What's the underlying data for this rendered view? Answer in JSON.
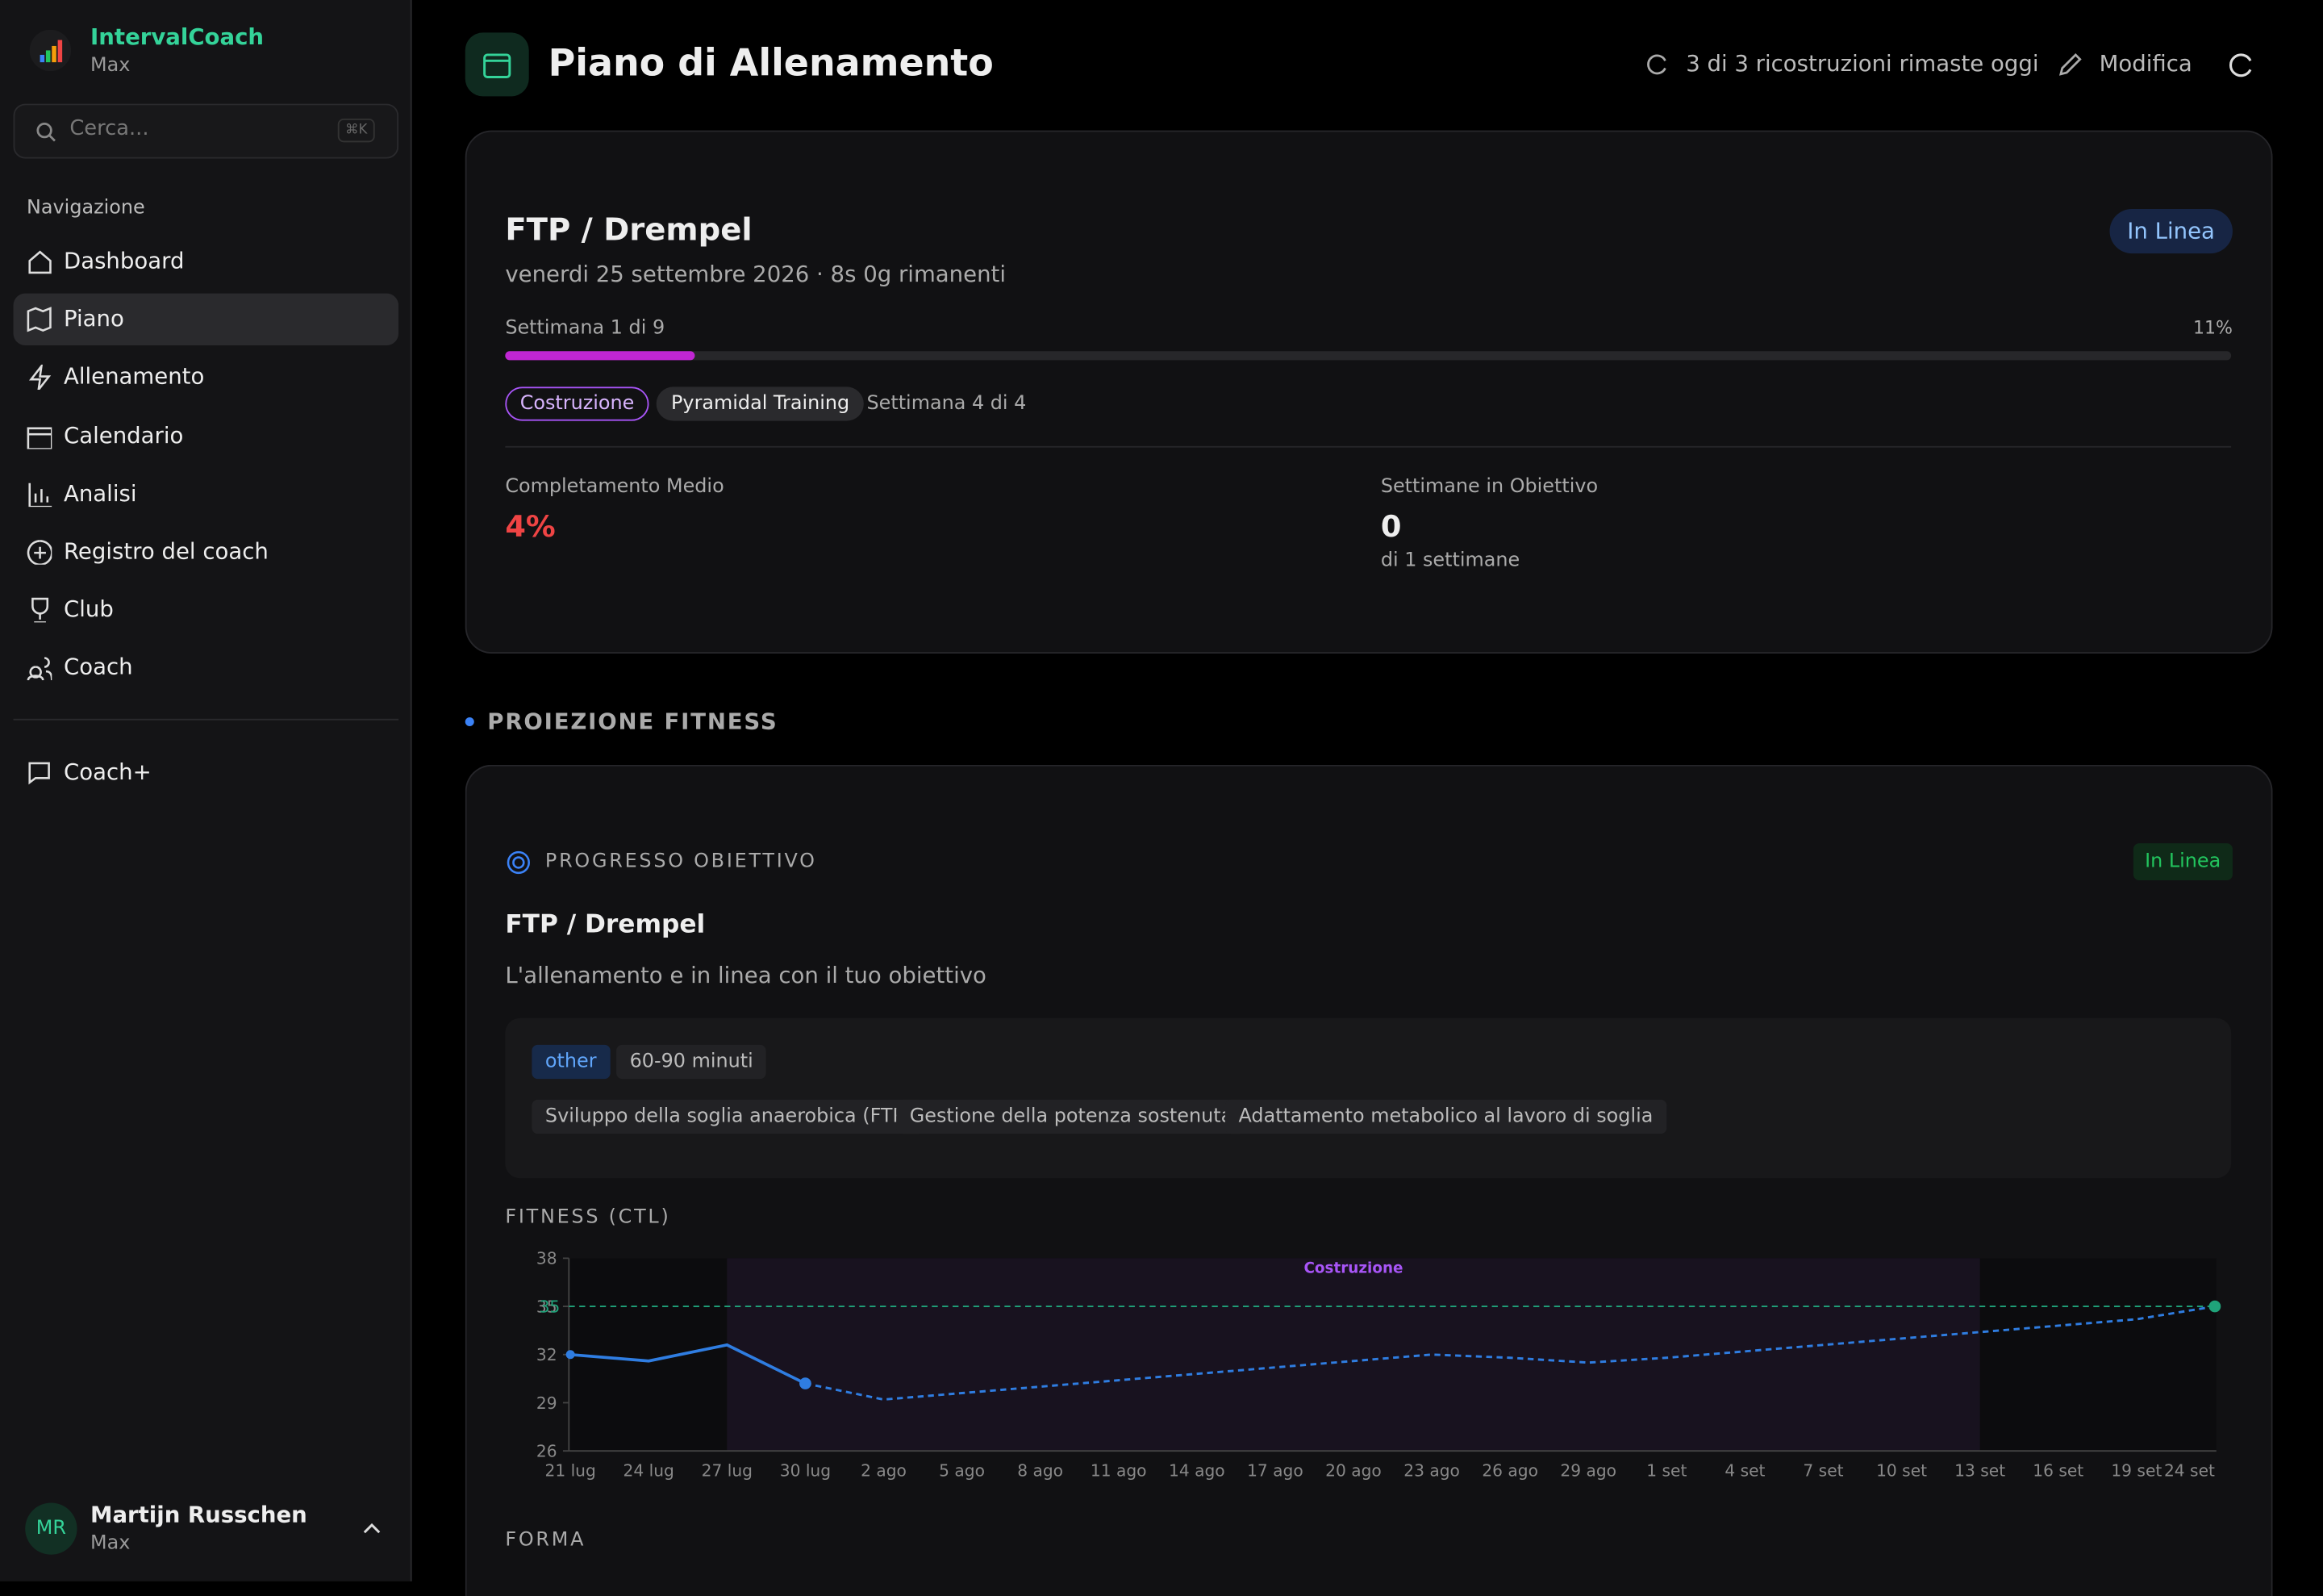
{
  "sidebar": {
    "app_name": "IntervalCoach",
    "plan": "Max",
    "search_placeholder": "Cerca...",
    "search_shortcut": "⌘K",
    "section": "Navigazione",
    "nav": [
      "Dashboard",
      "Piano",
      "Allenamento",
      "Calendario",
      "Analisi",
      "Registro del coach",
      "Club",
      "Coach"
    ],
    "extra": "Coach+",
    "user": {
      "initials": "MR",
      "name": "Martijn Russchen",
      "plan": "Max"
    }
  },
  "header": {
    "title": "Piano di Allenamento",
    "rebuilds": "3 di 3 ricostruzioni rimaste oggi",
    "edit": "Modifica"
  },
  "goal_card": {
    "title": "FTP / Drempel",
    "subtitle": "venerdi 25 settembre 2026 · 8s 0g rimanenti",
    "status": "In Linea",
    "week_label": "Settimana 1 di 9",
    "progress": 11,
    "progress_label": "11%",
    "phase": "Costruzione",
    "block": "Pyramidal Training",
    "block_week": "Settimana 4 di 4",
    "stats": [
      {
        "label": "Completamento Medio",
        "value": "4%"
      },
      {
        "label": "Settimane in Obiettivo",
        "value": "0",
        "note": "di 1 settimane"
      }
    ]
  },
  "projection": {
    "section_title": "PROIEZIONE FITNESS",
    "badge": "PROGRESSO OBIETTIVO",
    "status": "In Linea",
    "title": "FTP / Drempel",
    "description": "L'allenamento e in linea con il tuo obiettivo",
    "tags": [
      "other",
      "60-90 minuti"
    ],
    "focus": [
      "Sviluppo della soglia anaerobica (FTP)",
      "Gestione della potenza sostenuta",
      "Adattamento metabolico al lavoro di soglia"
    ]
  },
  "chart_data": {
    "type": "line",
    "title": "FITNESS (CTL)",
    "categories": [
      "21 lug",
      "24 lug",
      "27 lug",
      "30 lug",
      "2 ago",
      "5 ago",
      "8 ago",
      "11 ago",
      "14 ago",
      "17 ago",
      "20 ago",
      "23 ago",
      "26 ago",
      "29 ago",
      "1 set",
      "4 set",
      "7 set",
      "10 set",
      "13 set",
      "16 set",
      "19 set",
      "24 set"
    ],
    "series": [
      {
        "color": "#2f7de1",
        "dashed": false,
        "values": [
          32,
          31.6,
          32.6,
          30.2,
          null,
          null,
          null,
          null,
          null,
          null,
          null,
          null,
          null,
          null,
          null,
          null,
          null,
          null,
          null,
          null,
          null,
          null
        ]
      },
      {
        "color": "#2f7de1",
        "dashed": true,
        "values": [
          null,
          null,
          null,
          30.2,
          29.2,
          29.6,
          30.0,
          30.4,
          30.8,
          31.2,
          31.6,
          32.0,
          31.8,
          31.5,
          31.8,
          32.2,
          32.6,
          33.0,
          33.4,
          33.8,
          34.2,
          35
        ]
      }
    ],
    "target": 35,
    "target_color": "#1fa37a",
    "band": {
      "label": "Costruzione",
      "start": 2,
      "end": 18,
      "color": "#a855f7"
    },
    "ylim": [
      26,
      38
    ],
    "yticks": [
      26,
      29,
      32,
      35,
      38
    ],
    "grid": false
  },
  "next_section": "FORMA"
}
